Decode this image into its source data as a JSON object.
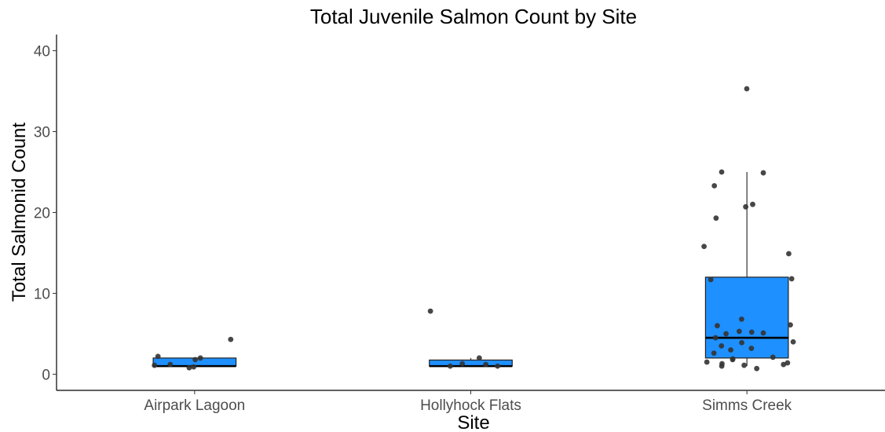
{
  "chart_data": {
    "type": "box",
    "title": "Total Juvenile Salmon Count by Site",
    "xlabel": "Site",
    "ylabel": "Total Salmonid Count",
    "ylim": [
      -2,
      42
    ],
    "yticks": [
      0,
      10,
      20,
      30,
      40
    ],
    "grid": false,
    "legend": "none",
    "categories": [
      "Airpark Lagoon",
      "Hollyhock Flats",
      "Simms Creek"
    ],
    "box_fill": "#1E90FF",
    "point_color": "#333333",
    "boxes": [
      {
        "category": "Airpark Lagoon",
        "whisker_low": 1,
        "q1": 1,
        "median": 1,
        "q3": 2,
        "whisker_high": 2,
        "outliers": [
          4.3
        ]
      },
      {
        "category": "Hollyhock Flats",
        "whisker_low": 1,
        "q1": 1,
        "median": 1,
        "q3": 1.75,
        "whisker_high": 2,
        "outliers": [
          7.8
        ]
      },
      {
        "category": "Simms Creek",
        "whisker_low": 1,
        "q1": 2,
        "median": 4.5,
        "q3": 12,
        "whisker_high": 25,
        "outliers": [
          35.3
        ]
      }
    ],
    "points": [
      {
        "category": "Airpark Lagoon",
        "values": [
          0.9,
          2.0,
          2.2,
          1.2,
          0.8,
          1.8,
          1.1,
          4.3
        ]
      },
      {
        "category": "Hollyhock Flats",
        "values": [
          2.0,
          1.3,
          1.0,
          1.0,
          1.2,
          7.8
        ]
      },
      {
        "category": "Simms Creek",
        "values": [
          35.3,
          25.0,
          24.9,
          23.3,
          21.0,
          20.7,
          19.3,
          15.8,
          14.9,
          11.8,
          11.7,
          6.8,
          6.1,
          6.0,
          5.3,
          5.2,
          5.1,
          5.0,
          4.5,
          4.0,
          3.9,
          3.5,
          3.2,
          3.0,
          2.6,
          2.1,
          1.9,
          1.8,
          1.5,
          1.4,
          1.3,
          1.2,
          1.1,
          1.0,
          0.7
        ]
      }
    ]
  }
}
